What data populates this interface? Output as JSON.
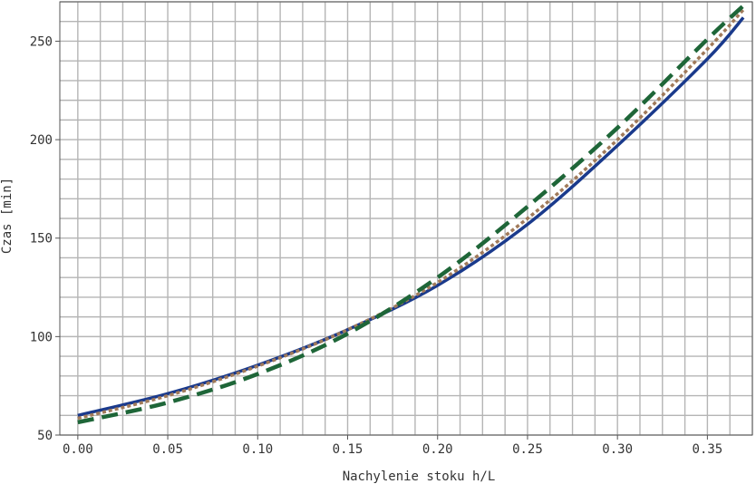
{
  "chart_data": {
    "type": "line",
    "title": "",
    "xlabel": "Nachylenie stoku h/L",
    "ylabel": "Czas [min]",
    "xlim": [
      -0.01,
      0.375
    ],
    "ylim": [
      50,
      270
    ],
    "x_ticks": [
      0.0,
      0.05,
      0.1,
      0.15,
      0.2,
      0.25,
      0.3,
      0.35
    ],
    "x_tick_labels": [
      "0.00",
      "0.05",
      "0.10",
      "0.15",
      "0.20",
      "0.25",
      "0.30",
      "0.35"
    ],
    "y_ticks": [
      50,
      100,
      150,
      200,
      250
    ],
    "y_tick_labels": [
      "50",
      "100",
      "150",
      "200",
      "250"
    ],
    "grid": true,
    "x_grid_step": 0.0125,
    "y_grid_step": 10,
    "series": [
      {
        "style": "solid",
        "color": "#1a3a8c",
        "x": [
          0.0,
          0.05,
          0.1,
          0.15,
          0.2,
          0.25,
          0.3,
          0.35,
          0.37
        ],
        "y": [
          60,
          71,
          85.5,
          103.5,
          126,
          157,
          197,
          241,
          262
        ]
      },
      {
        "style": "dotted",
        "color": "#a07a5a",
        "x": [
          0.0,
          0.05,
          0.1,
          0.15,
          0.2,
          0.25,
          0.3,
          0.35,
          0.37
        ],
        "y": [
          58.5,
          70,
          85,
          103.5,
          127.5,
          160,
          200,
          246,
          266
        ]
      },
      {
        "style": "dashed",
        "color": "#1e6638",
        "x": [
          0.0,
          0.05,
          0.1,
          0.15,
          0.2,
          0.25,
          0.3,
          0.35,
          0.37
        ],
        "y": [
          56.5,
          66.5,
          81,
          101.5,
          130,
          166,
          206,
          251,
          268
        ]
      }
    ]
  }
}
